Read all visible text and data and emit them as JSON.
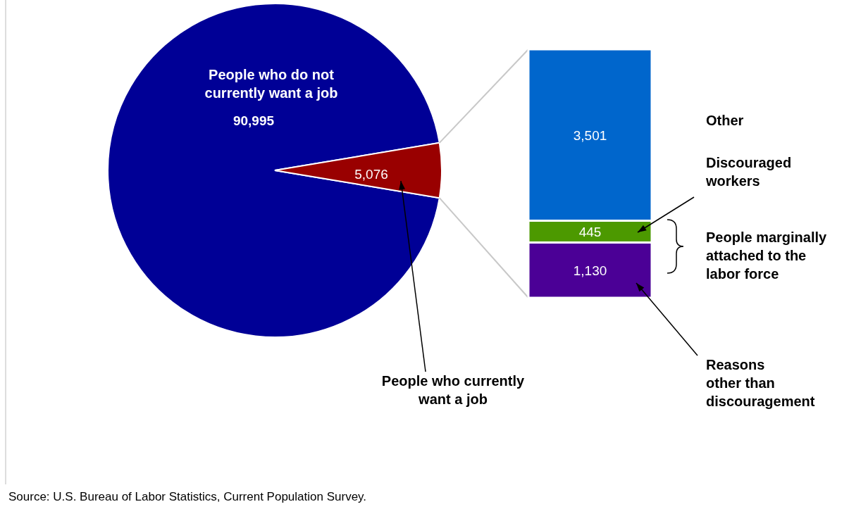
{
  "chart_data": [
    {
      "type": "pie",
      "categories": [
        "People who do not currently want a job",
        "People who currently want a job"
      ],
      "values": [
        90995,
        5076
      ],
      "value_labels": [
        "90,995",
        "5,076"
      ],
      "colors": [
        "#000096",
        "#990000"
      ],
      "annotations": [
        "Source: U.S. Bureau of Labor Statistics, Current Population Survey."
      ]
    },
    {
      "type": "bar",
      "stacked": true,
      "categories": [
        null
      ],
      "series": [
        {
          "name": "Reasons other than discouragement",
          "color": "#4b0096",
          "values": [
            1130
          ],
          "value_labels": [
            "1,130"
          ]
        },
        {
          "name": "Discouraged workers",
          "color": "#4c9900",
          "values": [
            445
          ],
          "value_labels": [
            "445"
          ]
        },
        {
          "name": "Other",
          "color": "#0066cc",
          "values": [
            3501
          ],
          "value_labels": [
            "3,501"
          ]
        }
      ],
      "annotations": [
        "People marginally attached to the labor force"
      ]
    }
  ]
}
